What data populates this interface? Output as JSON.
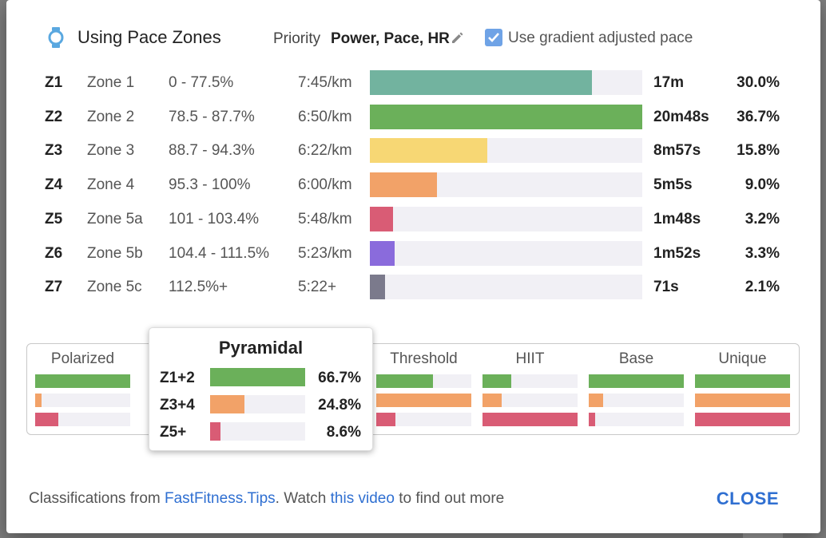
{
  "header": {
    "title": "Using Pace Zones",
    "priority_label": "Priority",
    "priority_value": "Power, Pace, HR",
    "gradient_label": "Use gradient adjusted pace",
    "gradient_checked": true
  },
  "colors": {
    "z1": "#72b39f",
    "z2": "#6bb05a",
    "z3": "#f7d774",
    "z4": "#f2a268",
    "z5": "#d95c75",
    "z6": "#8a6bdc",
    "z7": "#7b7a8c",
    "accent": "#2f6fd1",
    "track": "#f1f0f5"
  },
  "zones": [
    {
      "code": "Z1",
      "name": "Zone 1",
      "range": "0 - 77.5%",
      "pace": "7:45/km",
      "time": "17m",
      "pct": "30.0%",
      "fill": 0.815
    },
    {
      "code": "Z2",
      "name": "Zone 2",
      "range": "78.5 - 87.7%",
      "pace": "6:50/km",
      "time": "20m48s",
      "pct": "36.7%",
      "fill": 1.0
    },
    {
      "code": "Z3",
      "name": "Zone 3",
      "range": "88.7 - 94.3%",
      "pace": "6:22/km",
      "time": "8m57s",
      "pct": "15.8%",
      "fill": 0.43
    },
    {
      "code": "Z4",
      "name": "Zone 4",
      "range": "95.3 - 100%",
      "pace": "6:00/km",
      "time": "5m5s",
      "pct": "9.0%",
      "fill": 0.245
    },
    {
      "code": "Z5",
      "name": "Zone 5a",
      "range": "101 - 103.4%",
      "pace": "5:48/km",
      "time": "1m48s",
      "pct": "3.2%",
      "fill": 0.085
    },
    {
      "code": "Z6",
      "name": "Zone 5b",
      "range": "104.4 - 111.5%",
      "pace": "5:23/km",
      "time": "1m52s",
      "pct": "3.3%",
      "fill": 0.09
    },
    {
      "code": "Z7",
      "name": "Zone 5c",
      "range": "112.5%+",
      "pace": "5:22+",
      "time": "71s",
      "pct": "2.1%",
      "fill": 0.055
    }
  ],
  "classifications": [
    {
      "name": "Polarized",
      "bars": [
        1.0,
        0.07,
        0.24
      ]
    },
    {
      "name": "Threshold",
      "bars": [
        0.6,
        1.0,
        0.2
      ]
    },
    {
      "name": "HIIT",
      "bars": [
        0.3,
        0.2,
        1.0
      ]
    },
    {
      "name": "Base",
      "bars": [
        1.0,
        0.15,
        0.07
      ]
    },
    {
      "name": "Unique",
      "bars": [
        1.0,
        1.0,
        1.0
      ]
    }
  ],
  "popup": {
    "title": "Pyramidal",
    "rows": [
      {
        "label": "Z1+2",
        "pct": "66.7%",
        "fill": 1.0
      },
      {
        "label": "Z3+4",
        "pct": "24.8%",
        "fill": 0.36
      },
      {
        "label": "Z5+",
        "pct": "8.6%",
        "fill": 0.11
      }
    ]
  },
  "footer": {
    "prefix": "Classifications from ",
    "link1": "FastFitness.Tips",
    "middle": ". Watch ",
    "link2": "this video",
    "suffix": " to find out more"
  },
  "close_label": "CLOSE"
}
